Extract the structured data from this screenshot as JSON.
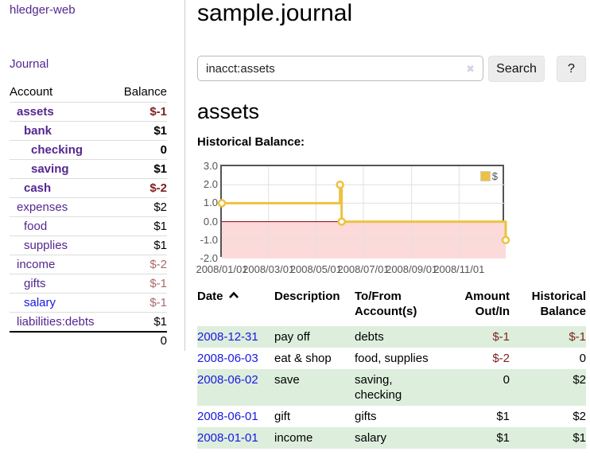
{
  "colors": {
    "purple_link": "#54278f",
    "blue_link": "#1818e0",
    "negative_strong": "#801f1f",
    "negative_soft": "#ad6a6a",
    "row_green": "#ddeedd",
    "chart_gold": "#edc240",
    "chart_negative_fill": "#fcdada",
    "chart_zero_line": "#8b0000",
    "chart_grid": "#e0e0e0",
    "chart_border": "#545454",
    "button_bg": "#ececec"
  },
  "sidebar": {
    "app_title": "hledger-web",
    "journal_link": "Journal",
    "accounts": {
      "header": {
        "account": "Account",
        "balance": "Balance"
      },
      "rows": [
        {
          "name": "assets",
          "indent": 0,
          "bold": true,
          "balance": "$-1",
          "balance_style": "neg-strong",
          "link": "purple"
        },
        {
          "name": "bank",
          "indent": 1,
          "bold": true,
          "balance": "$1",
          "balance_style": "",
          "link": "purple"
        },
        {
          "name": "checking",
          "indent": 2,
          "bold": true,
          "balance": "0",
          "balance_style": "",
          "link": "purple"
        },
        {
          "name": "saving",
          "indent": 2,
          "bold": true,
          "balance": "$1",
          "balance_style": "",
          "link": "purple"
        },
        {
          "name": "cash",
          "indent": 1,
          "bold": true,
          "balance": "$-2",
          "balance_style": "neg-strong",
          "link": "purple"
        },
        {
          "name": "expenses",
          "indent": 0,
          "bold": false,
          "balance": "$2",
          "balance_style": "",
          "link": "purple"
        },
        {
          "name": "food",
          "indent": 1,
          "bold": false,
          "balance": "$1",
          "balance_style": "",
          "link": "purple"
        },
        {
          "name": "supplies",
          "indent": 1,
          "bold": false,
          "balance": "$1",
          "balance_style": "",
          "link": "purple"
        },
        {
          "name": "income",
          "indent": 0,
          "bold": false,
          "balance": "$-2",
          "balance_style": "neg-soft",
          "link": "purple"
        },
        {
          "name": "gifts",
          "indent": 1,
          "bold": false,
          "balance": "$-1",
          "balance_style": "neg-soft",
          "link": "purple"
        },
        {
          "name": "salary",
          "indent": 1,
          "bold": false,
          "balance": "$-1",
          "balance_style": "neg-soft",
          "link": "blue"
        },
        {
          "name": "liabilities:debts",
          "indent": 0,
          "bold": false,
          "balance": "$1",
          "balance_style": "",
          "link": "purple"
        }
      ],
      "total": "0"
    }
  },
  "main": {
    "title": "sample.journal",
    "search": {
      "value": "inacct:assets",
      "clear_icon": "✖",
      "button_label": "Search",
      "help_label": "?"
    },
    "account_heading": "assets",
    "chart_label": "Historical Balance:"
  },
  "chart_data": {
    "type": "line",
    "title": "Historical Balance:",
    "step": true,
    "series": [
      {
        "name": "$",
        "color": "#edc240",
        "points": [
          {
            "x": "2008-01-01",
            "y": 1
          },
          {
            "x": "2008-06-01",
            "y": 2
          },
          {
            "x": "2008-06-03",
            "y": 0
          },
          {
            "x": "2008-12-31",
            "y": -1
          }
        ]
      }
    ],
    "x_ticks": [
      "2008/01/01",
      "2008/03/01",
      "2008/05/01",
      "2008/07/01",
      "2008/09/01",
      "2008/11/01"
    ],
    "y_ticks": [
      3.0,
      2.0,
      1.0,
      0.0,
      -1.0,
      -2.0
    ],
    "xlim": [
      "2008-01-01",
      "2008-12-31"
    ],
    "ylim": [
      -2,
      3
    ],
    "legend": {
      "label": "$",
      "position": "top-right"
    },
    "grid": true,
    "grid_color": "#e0e0e0",
    "negative_region_color": "#fcdada",
    "zero_line_color": "#8b0000"
  },
  "transactions": {
    "headers": {
      "date": "Date",
      "description": "Description",
      "accounts": "To/From Account(s)",
      "amount": "Amount Out/In",
      "balance": "Historical Balance"
    },
    "sort": {
      "column": "date",
      "direction": "ascending",
      "icon": "chevron-up"
    },
    "rows": [
      {
        "date": "2008-12-31",
        "description": "pay off",
        "accounts": "debts",
        "amount": "$-1",
        "amount_neg": true,
        "balance": "$-1",
        "balance_neg": true
      },
      {
        "date": "2008-06-03",
        "description": "eat & shop",
        "accounts": "food, supplies",
        "amount": "$-2",
        "amount_neg": true,
        "balance": "0",
        "balance_neg": false
      },
      {
        "date": "2008-06-02",
        "description": "save",
        "accounts": "saving, checking",
        "amount": "0",
        "amount_neg": false,
        "balance": "$2",
        "balance_neg": false
      },
      {
        "date": "2008-06-01",
        "description": "gift",
        "accounts": "gifts",
        "amount": "$1",
        "amount_neg": false,
        "balance": "$2",
        "balance_neg": false
      },
      {
        "date": "2008-01-01",
        "description": "income",
        "accounts": "salary",
        "amount": "$1",
        "amount_neg": false,
        "balance": "$1",
        "balance_neg": false
      }
    ]
  }
}
